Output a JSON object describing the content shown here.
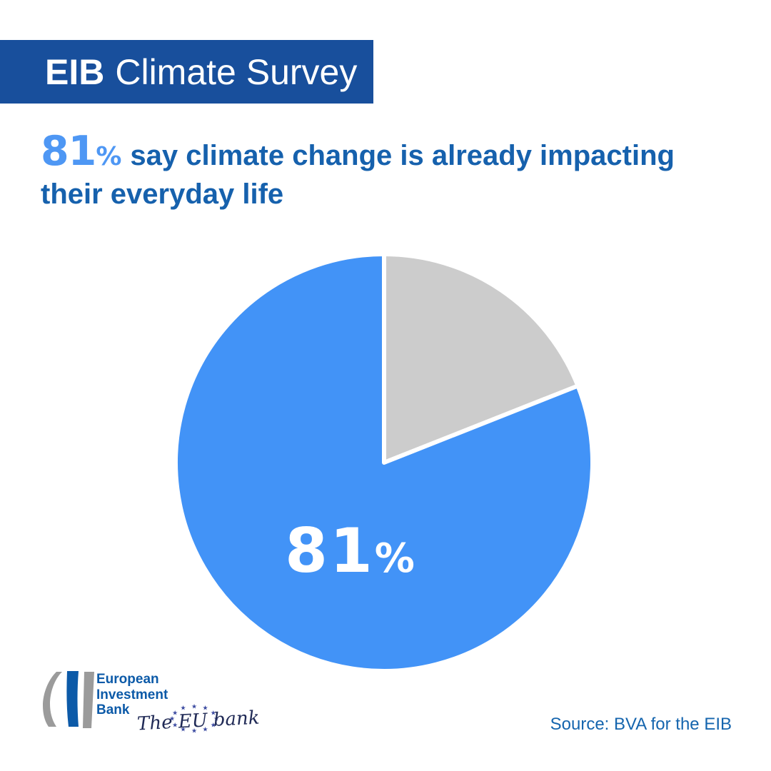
{
  "header": {
    "title_bold": "EIB",
    "title_rest": "Climate Survey"
  },
  "headline": {
    "stat_number": "81",
    "stat_percent": "%",
    "line1": "say climate change is already impacting",
    "line2": "their everyday life"
  },
  "chart_data": {
    "type": "pie",
    "title": "81% say climate change is already impacting their everyday life",
    "order": "clockwise-from-top",
    "slices": [
      {
        "label": "",
        "value": 19,
        "color": "#cccccc"
      },
      {
        "label": "81%",
        "value": 81,
        "color": "#4293f7"
      }
    ],
    "slice_label": {
      "number": "81",
      "percent_sign": "%"
    },
    "separator": {
      "color": "#ffffff",
      "width": 6
    },
    "legend": "none"
  },
  "footer": {
    "logo": {
      "org_line1": "European",
      "org_line2": "Investment",
      "org_line3": "Bank",
      "tagline": "The EU bank"
    },
    "source": "Source: BVA for the EIB"
  },
  "colors": {
    "banner_bg": "#184f9c",
    "banner_text": "#ffffff",
    "stat_blue": "#4e97f4",
    "headline_blue": "#1661ad",
    "pie_blue": "#4293f7",
    "pie_gray": "#cccccc",
    "pie_label": "#ffffff",
    "logo_blue": "#0c5aa8",
    "logo_gray": "#9b9b9b",
    "tagline_navy": "#202a56",
    "star_blue": "#3a49a0",
    "source_blue": "#1565ae"
  }
}
